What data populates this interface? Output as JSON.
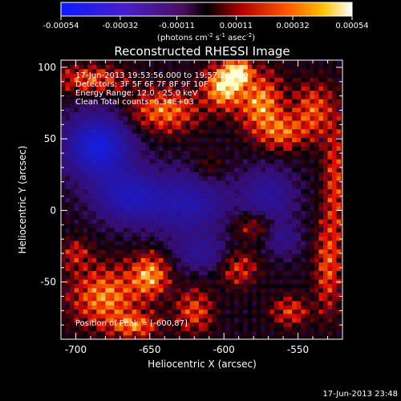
{
  "chart_data": {
    "type": "heatmap",
    "title": "Reconstructed RHESSI Image",
    "xlabel": "Heliocentric X (arcsec)",
    "ylabel": "Heliocentric Y (arcsec)",
    "xlim": [
      -710,
      -520
    ],
    "ylim": [
      -90,
      105
    ],
    "x_ticks": [
      "-700",
      "-650",
      "-600",
      "-550"
    ],
    "x_tick_values": [
      -700,
      -650,
      -600,
      -550
    ],
    "y_ticks": [
      "100",
      "50",
      "0",
      "-50"
    ],
    "y_tick_values": [
      100,
      50,
      0,
      -50
    ],
    "colorbar": {
      "min": -0.00054,
      "max": 0.00054,
      "ticks": [
        "-0.00054",
        "-0.00032",
        "-0.00011",
        "0.00011",
        "0.00032",
        "0.00054"
      ],
      "unit_main": "(photons cm",
      "unit_sup1": "-2",
      "unit_mid": " s",
      "unit_sup2": "-1",
      "unit_mid2": " asec",
      "unit_sup3": "-2",
      "unit_end": ")"
    },
    "annotations": {
      "line1": "17-Jun-2013 19:53:56.000 to 19:57:20.000",
      "line2": "Detectors: 3F 5F 6F 7F 8F 9F 10F",
      "line3": "Energy Range: 12.0 - 25.0 keV",
      "line4": "Clean     Total counts: 6.34E+03",
      "peak": "Position of Peak = [-600,87]"
    },
    "peak": [
      -600,
      87
    ],
    "timestamp": "17-Jun-2013 23:48"
  }
}
